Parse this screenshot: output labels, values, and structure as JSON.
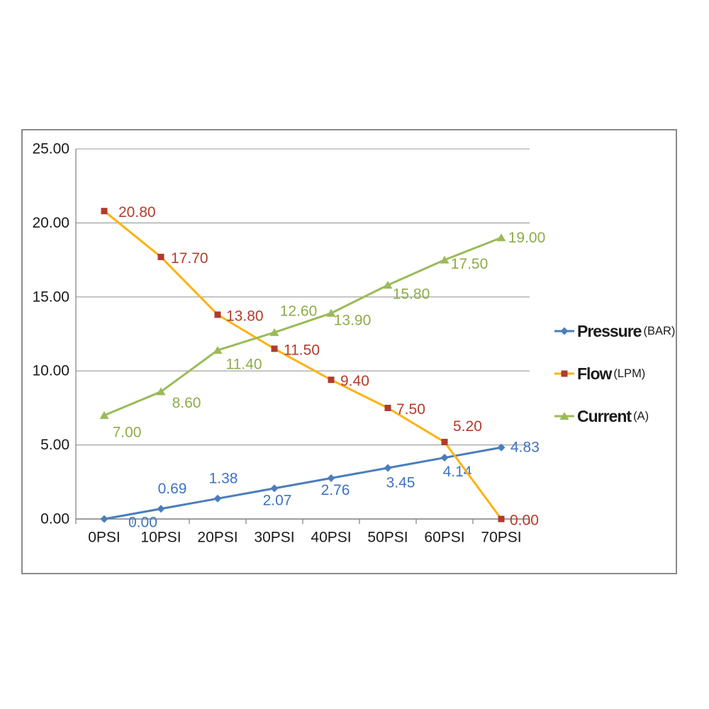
{
  "chart_data": {
    "type": "line",
    "title": "",
    "categories": [
      "0PSI",
      "10PSI",
      "20PSI",
      "30PSI",
      "40PSI",
      "50PSI",
      "60PSI",
      "70PSI"
    ],
    "y_axis": {
      "min": 0,
      "max": 25,
      "step": 5,
      "tick_labels": [
        "25.00",
        "20.00",
        "15.00",
        "10.00",
        "5.00",
        "0.00"
      ]
    },
    "grid": true,
    "legend_position": "right",
    "colors": {
      "gridline": "#9a9a9a",
      "axis": "#7f7f7f",
      "axis_text": "#1a1a1a",
      "legend_text": "#1b1b1b"
    },
    "series": [
      {
        "name": "Pressure",
        "unit": "(BAR)",
        "marker": "diamond",
        "line_color": "#4A7EBB",
        "marker_color": "#4A7EBB",
        "label_color": "#3E74BE",
        "values": [
          0.0,
          0.69,
          1.38,
          2.07,
          2.76,
          3.45,
          4.14,
          4.83
        ],
        "labels": [
          "0.00",
          "0.69",
          "1.38",
          "2.07",
          "2.76",
          "3.45",
          "4.14",
          "4.83"
        ],
        "label_offsets": [
          [
            34,
            5
          ],
          [
            16,
            -28
          ],
          [
            8,
            -28
          ],
          [
            4,
            17
          ],
          [
            6,
            17
          ],
          [
            18,
            21
          ],
          [
            18,
            20
          ],
          [
            13,
            0
          ]
        ],
        "label_anchors": [
          "start",
          "middle",
          "middle",
          "middle",
          "middle",
          "middle",
          "middle",
          "start"
        ]
      },
      {
        "name": "Flow",
        "unit": "(LPM)",
        "marker": "square",
        "line_color": "#FDB212",
        "marker_color": "#B03B2E",
        "label_color": "#B53B2B",
        "values": [
          20.8,
          17.7,
          13.8,
          11.5,
          9.4,
          7.5,
          5.2,
          0.0
        ],
        "labels": [
          "20.80",
          "17.70",
          "13.80",
          "11.50",
          "9.40",
          "7.50",
          "5.20",
          "0.00"
        ],
        "label_offsets": [
          [
            20,
            2
          ],
          [
            14,
            2
          ],
          [
            12,
            2
          ],
          [
            13,
            2
          ],
          [
            13,
            2
          ],
          [
            12,
            2
          ],
          [
            12,
            -22
          ],
          [
            12,
            2
          ]
        ],
        "label_anchors": [
          "start",
          "start",
          "start",
          "start",
          "start",
          "start",
          "start",
          "start"
        ]
      },
      {
        "name": "Current",
        "unit": "(A)",
        "marker": "triangle",
        "line_color": "#9ABB59",
        "marker_color": "#9ABB59",
        "label_color": "#8EAC49",
        "values": [
          7.0,
          8.6,
          11.4,
          12.6,
          13.9,
          15.8,
          17.5,
          19.0
        ],
        "labels": [
          "7.00",
          "8.60",
          "11.40",
          "12.60",
          "13.90",
          "15.80",
          "17.50",
          "19.00"
        ],
        "label_offsets": [
          [
            32,
            24
          ],
          [
            36,
            16
          ],
          [
            37,
            20
          ],
          [
            34,
            -30
          ],
          [
            30,
            10
          ],
          [
            33,
            13
          ],
          [
            35,
            6
          ],
          [
            36,
            0
          ]
        ],
        "label_anchors": [
          "middle",
          "middle",
          "middle",
          "middle",
          "middle",
          "middle",
          "middle",
          "middle"
        ]
      }
    ]
  }
}
